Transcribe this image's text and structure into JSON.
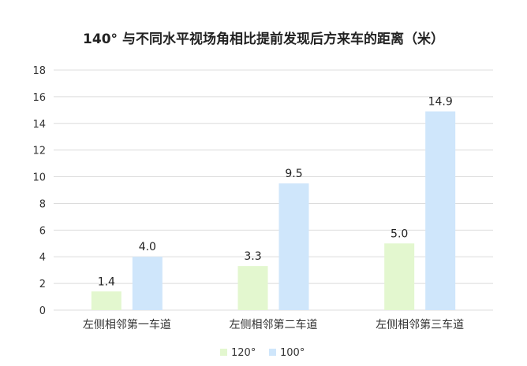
{
  "chart_data": {
    "type": "bar",
    "title": "140° 与不同水平视场角相比提前发现后方来车的距离（米）",
    "xlabel": "",
    "ylabel": "",
    "ylim": [
      0,
      18
    ],
    "yticks": [
      0,
      2,
      4,
      6,
      8,
      10,
      12,
      14,
      16,
      18
    ],
    "grid": true,
    "legend": "bottom",
    "categories": [
      "左侧相邻第一车道",
      "左侧相邻第二车道",
      "左侧相邻第三车道"
    ],
    "series": [
      {
        "name": "120°",
        "values": [
          1.4,
          3.3,
          5.0
        ],
        "labels": [
          "1.4",
          "3.3",
          "5.0"
        ],
        "color": "#e3f7cf"
      },
      {
        "name": "100°",
        "values": [
          4.0,
          9.5,
          14.9
        ],
        "labels": [
          "4.0",
          "9.5",
          "14.9"
        ],
        "color": "#cfe6fb"
      }
    ]
  }
}
